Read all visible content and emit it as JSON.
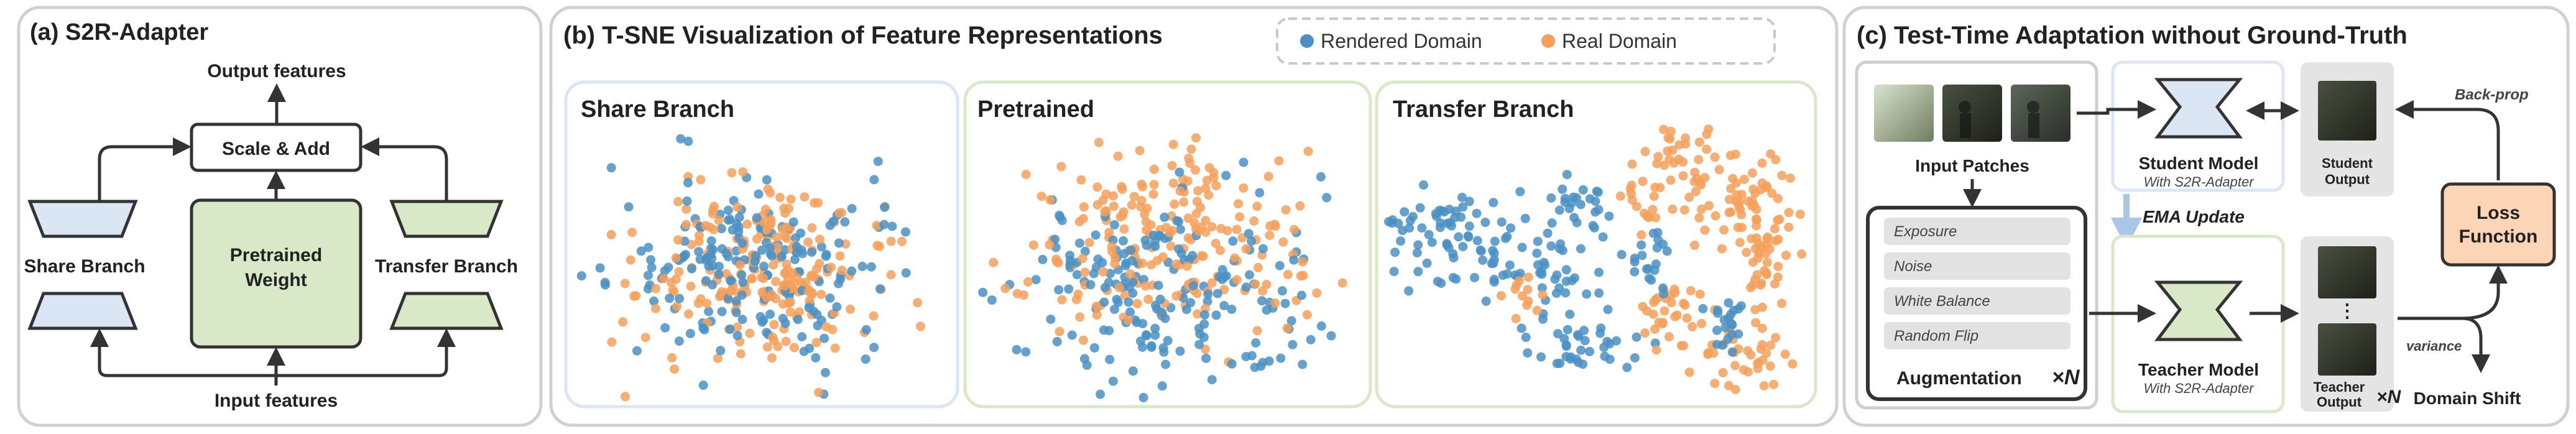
{
  "panel_a": {
    "title": "(a) S2R-Adapter",
    "output_features": "Output features",
    "input_features": "Input features",
    "scale_add": "Scale & Add",
    "pretrained_line1": "Pretrained",
    "pretrained_line2": "Weight",
    "share_branch": "Share Branch",
    "transfer_branch": "Transfer Branch"
  },
  "panel_b": {
    "title": "(b) T-SNE Visualization of Feature Representations",
    "legend": {
      "rendered": "Rendered Domain",
      "real": "Real Domain"
    },
    "subpanels": [
      "Share Branch",
      "Pretrained",
      "Transfer Branch"
    ],
    "colors": {
      "rendered": "#4a90c4",
      "real": "#f4a05a"
    }
  },
  "panel_c": {
    "title": "(c) Test-Time Adaptation without Ground-Truth",
    "input_patches": "Input Patches",
    "augmentations": [
      "Exposure",
      "Noise",
      "White Balance",
      "Random Flip"
    ],
    "augmentation_label": "Augmentation",
    "times_n": "×N",
    "student_model": "Student Model",
    "student_sub": "With S2R-Adapter",
    "teacher_model": "Teacher Model",
    "teacher_sub": "With S2R-Adapter",
    "ema_update": "EMA Update",
    "student_output_line1": "Student",
    "student_output_line2": "Output",
    "teacher_output_line1": "Teacher",
    "teacher_output_line2": "Output",
    "back_prop": "Back-prop",
    "variance": "variance",
    "loss_line1": "Loss",
    "loss_line2": "Function",
    "domain_shift": "Domain Shift",
    "dots": "⋮"
  }
}
